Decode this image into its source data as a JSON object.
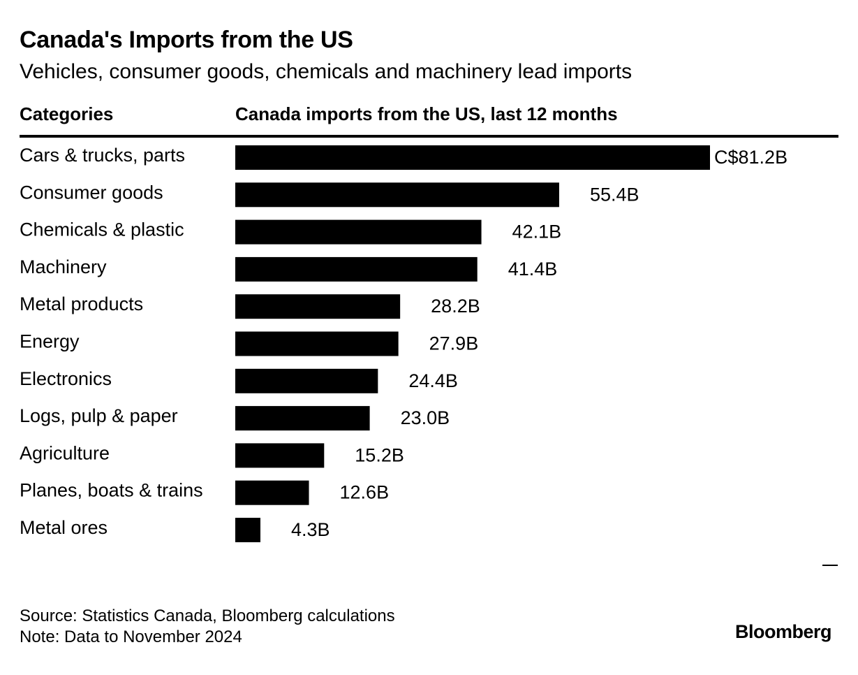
{
  "chart_data": {
    "type": "bar",
    "orientation": "horizontal",
    "title": "Canada's Imports from the US",
    "subtitle": "Vehicles, consumer goods, chemicals and machinery lead imports",
    "category_header": "Categories",
    "value_header": "Canada imports from the US, last 12 months",
    "unit": "C$ billions",
    "categories": [
      "Cars & trucks, parts",
      "Consumer goods",
      "Chemicals & plastic",
      "Machinery",
      "Metal products",
      "Energy",
      "Electronics",
      "Logs, pulp & paper",
      "Agriculture",
      "Planes, boats & trains",
      "Metal ores"
    ],
    "values": [
      81.2,
      55.4,
      42.1,
      41.4,
      28.2,
      27.9,
      24.4,
      23.0,
      15.2,
      12.6,
      4.3
    ],
    "value_labels": [
      "C$81.2B",
      "55.4B",
      "42.1B",
      "41.4B",
      "28.2B",
      "27.9B",
      "24.4B",
      "23.0B",
      "15.2B",
      "12.6B",
      "4.3B"
    ],
    "xlim": [
      0,
      81.2
    ],
    "bar_color": "#000000"
  },
  "footer": {
    "source": "Source: Statistics Canada, Bloomberg calculations",
    "note": "Note: Data to November 2024",
    "brand": "Bloomberg"
  }
}
